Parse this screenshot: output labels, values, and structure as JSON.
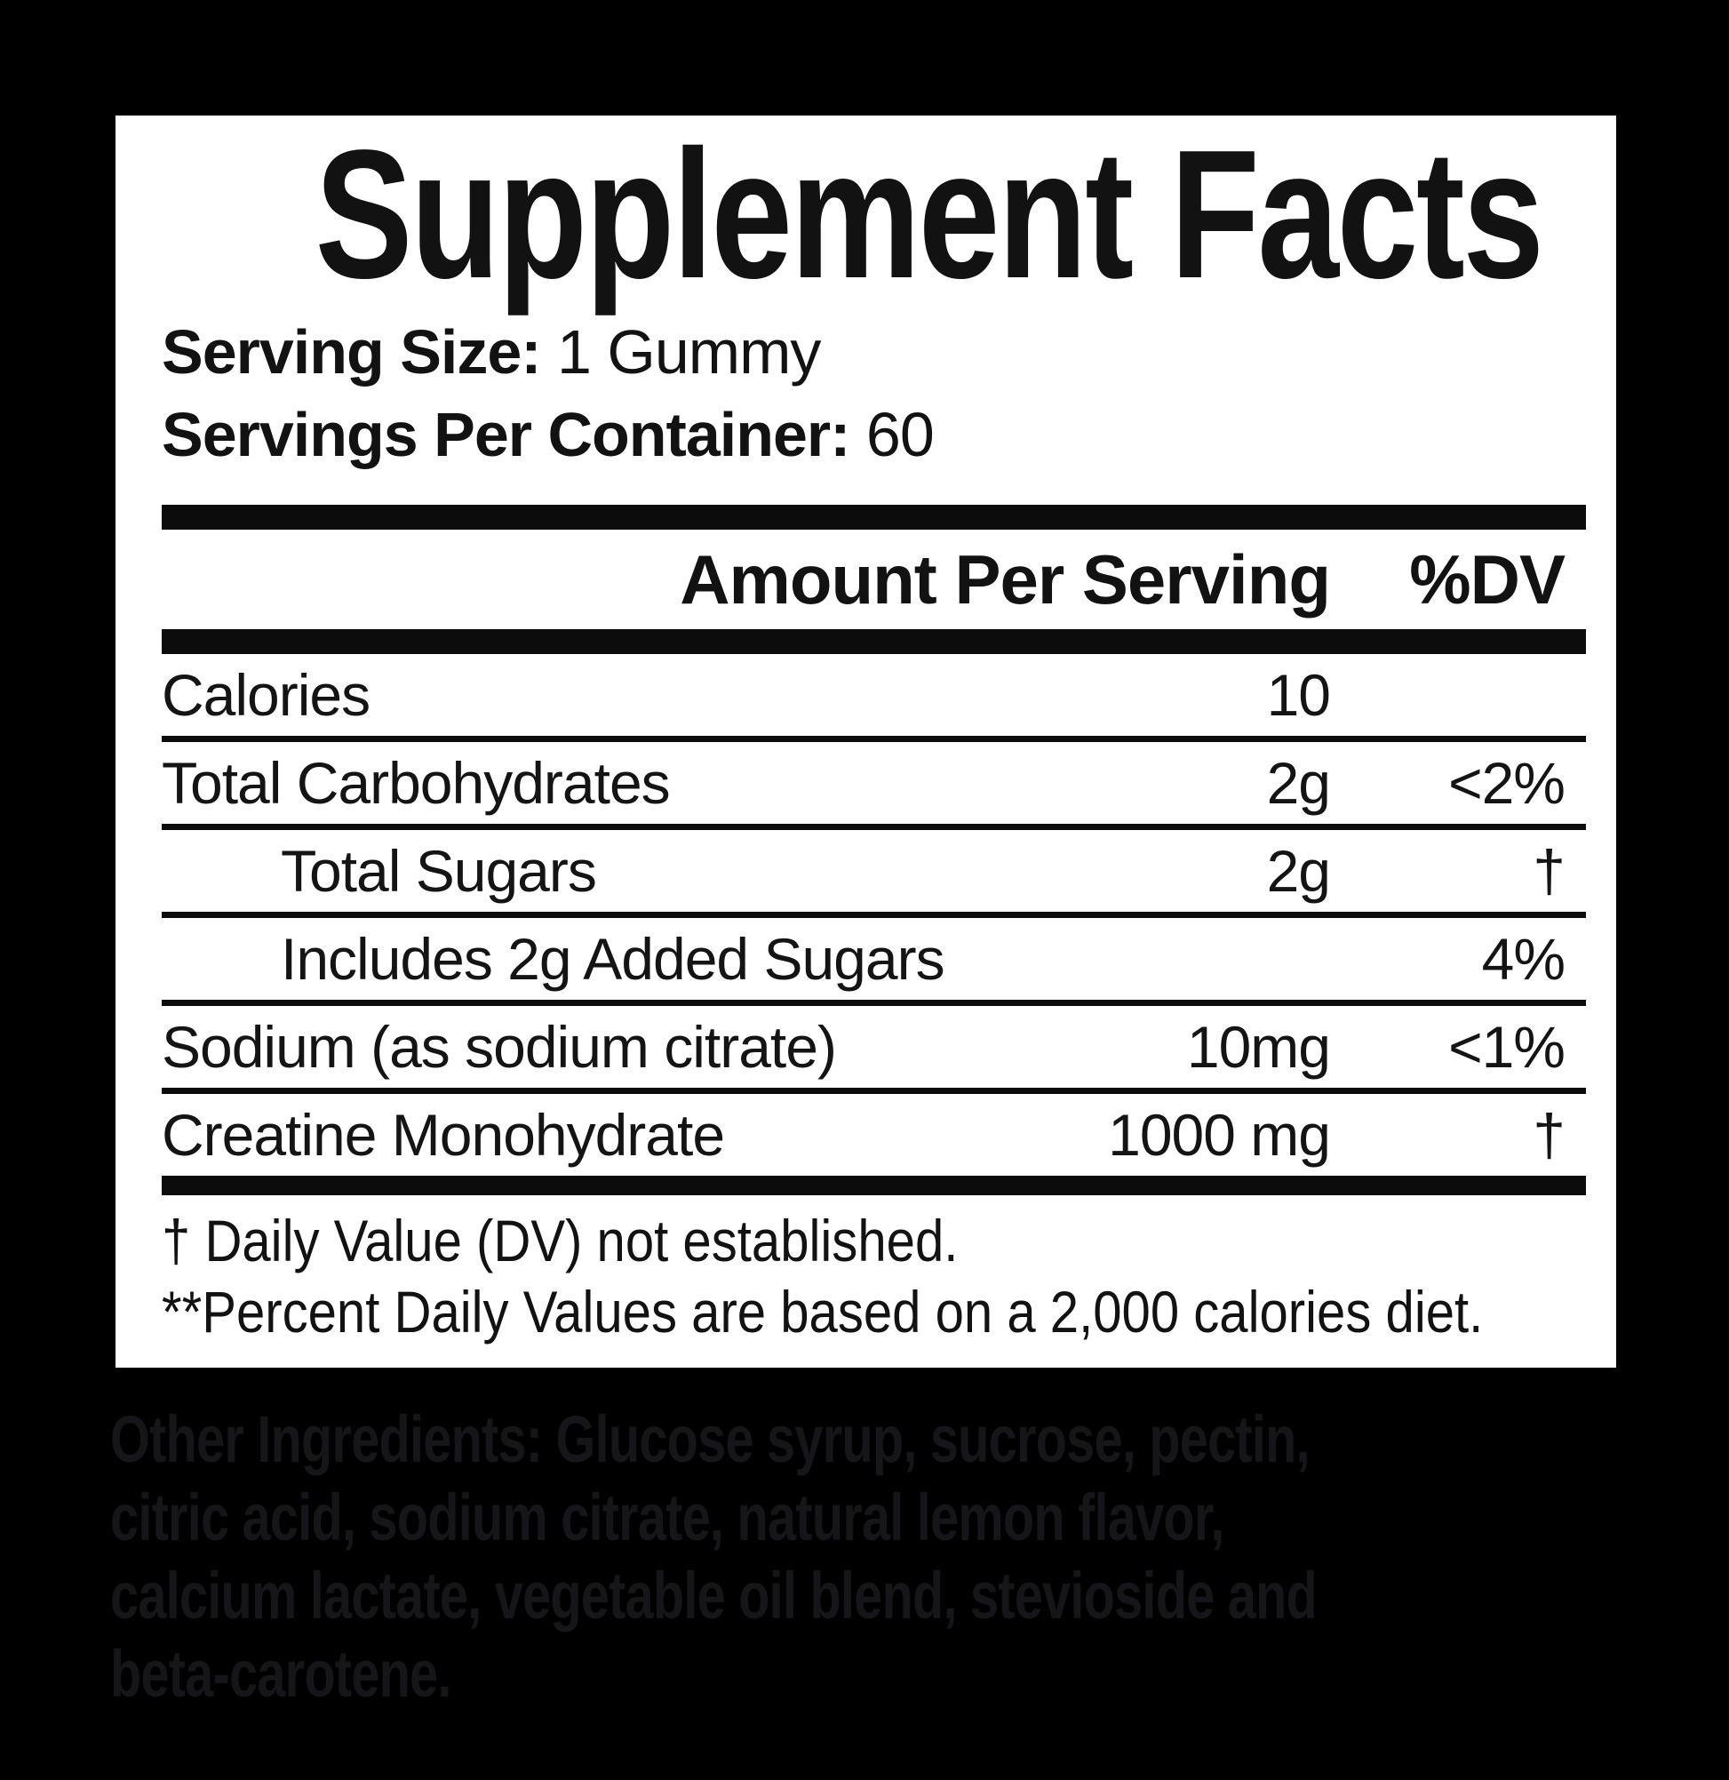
{
  "label": {
    "title": "Supplement Facts",
    "serving_size_label": "Serving Size:",
    "serving_size_value": " 1 Gummy",
    "servings_per_container_label": "Servings Per Container:",
    "servings_per_container_value": " 60",
    "table": {
      "amount_header": "Amount Per Serving",
      "dv_header": "%DV",
      "rows": [
        {
          "name": "Calories",
          "amount": "10",
          "dv": ""
        },
        {
          "name": "Total Carbohydrates",
          "amount": "2g",
          "dv": "<2%"
        },
        {
          "name": "Total Sugars",
          "amount": "2g",
          "dv": "†"
        },
        {
          "name": "Includes 2g Added Sugars",
          "amount": "",
          "dv": "4%"
        },
        {
          "name": "Sodium (as sodium citrate)",
          "amount": "10mg",
          "dv": "<1%"
        },
        {
          "name": "Creatine Monohydrate",
          "amount": "1000 mg",
          "dv": "†"
        }
      ]
    },
    "footnotes": [
      "† Daily Value (DV) not established.",
      "**Percent Daily Values are based on a 2,000 calories diet."
    ]
  },
  "ingredients": {
    "lead": "Other Ingredients:",
    "line1_rest": " Glucose syrup, sucrose, pectin,",
    "line2": "citric acid, sodium citrate, natural lemon flavor,",
    "line3": "calcium lactate, vegetable oil blend, stevioside and",
    "line4": "beta-carotene."
  },
  "colors": {
    "background": "#000000",
    "panel": "#ffffff",
    "text": "#141414",
    "rule": "#0c0c0c",
    "ingredients_text": "#15151a"
  }
}
